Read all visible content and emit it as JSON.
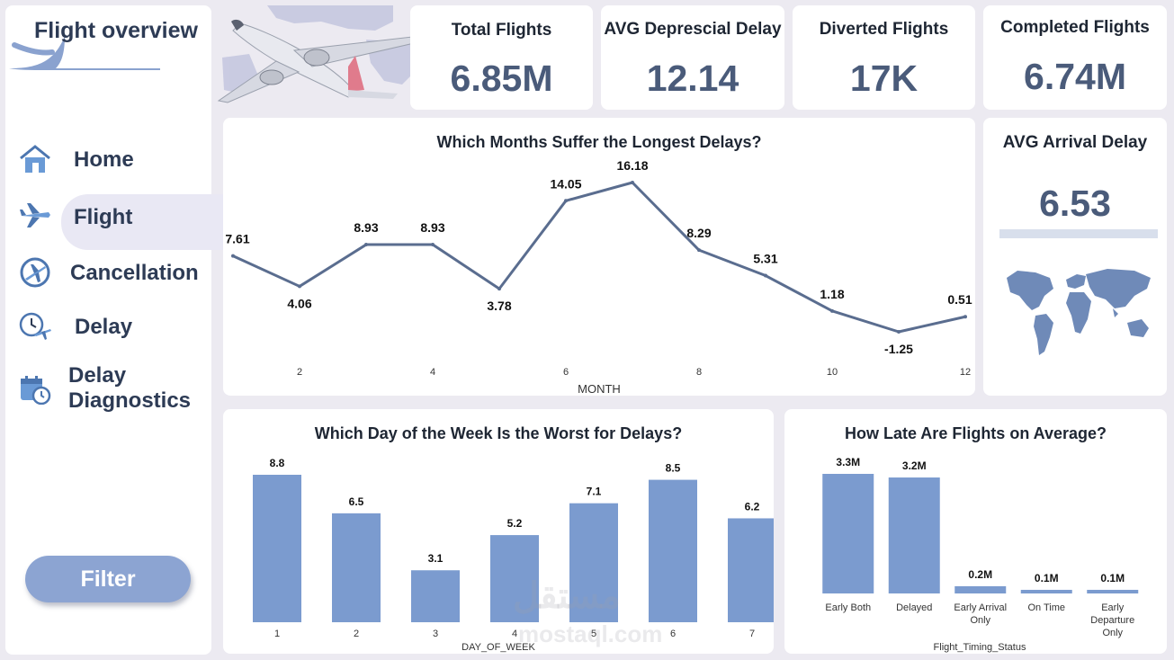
{
  "sidebar": {
    "title": "Flight overview",
    "items": [
      {
        "label": "Home",
        "icon": "home-icon"
      },
      {
        "label": "Flight",
        "icon": "airplane-icon"
      },
      {
        "label": "Cancellation",
        "icon": "airplane-circle-icon"
      },
      {
        "label": "Delay",
        "icon": "clock-airplane-icon"
      },
      {
        "label": "Delay Diagnostics",
        "icon": "calendar-clock-icon"
      }
    ],
    "active": "Flight",
    "filter_label": "Filter"
  },
  "kpis": {
    "total_flights": {
      "label": "Total Flights",
      "value": "6.85M"
    },
    "avg_departure_delay": {
      "label": "AVG Deprescial Delay",
      "value": "12.14"
    },
    "diverted_flights": {
      "label": "Diverted Flights",
      "value": "17K"
    },
    "completed_flights": {
      "label": "Completed Flights",
      "value": "6.74M"
    },
    "avg_arrival_delay": {
      "label": "AVG Arrival Delay",
      "value": "6.53"
    }
  },
  "colors": {
    "accent": "#7b9bcf",
    "line": "#5a6d8f",
    "kpi_value": "#4a5b7a"
  },
  "watermark": {
    "line1": "مستقل",
    "line2": "mostaql.com"
  },
  "chart_data": [
    {
      "type": "line",
      "title": "Which Months Suffer the Longest Delays?",
      "xlabel": "MONTH",
      "ylabel": "",
      "x": [
        1,
        2,
        3,
        4,
        5,
        6,
        7,
        8,
        9,
        10,
        11,
        12
      ],
      "values": [
        7.61,
        4.06,
        8.93,
        8.93,
        3.78,
        14.05,
        16.18,
        8.29,
        5.31,
        1.18,
        -1.25,
        0.51
      ],
      "labels": [
        "7.61",
        "4.06",
        "8.93",
        "8.93",
        "3.78",
        "14.05",
        "16.18",
        "8.29",
        "5.31",
        "1.18",
        "-1.25",
        "0.51"
      ],
      "xticks": [
        "2",
        "4",
        "6",
        "8",
        "10",
        "12"
      ]
    },
    {
      "type": "bar",
      "title": "Which Day of the Week Is the Worst for Delays?",
      "xlabel": "DAY_OF_WEEK",
      "categories": [
        "1",
        "2",
        "3",
        "4",
        "5",
        "6",
        "7"
      ],
      "values": [
        8.8,
        6.5,
        3.1,
        5.2,
        7.1,
        8.5,
        6.2
      ],
      "labels": [
        "8.8",
        "6.5",
        "3.1",
        "5.2",
        "7.1",
        "8.5",
        "6.2"
      ]
    },
    {
      "type": "bar",
      "title": "How Late Are Flights on Average?",
      "xlabel": "Flight_Timing_Status",
      "categories": [
        "Early Both",
        "Delayed",
        "Early Arrival Only",
        "On Time",
        "Early Departure Only"
      ],
      "values": [
        3.3,
        3.2,
        0.2,
        0.1,
        0.1
      ],
      "labels": [
        "3.3M",
        "3.2M",
        "0.2M",
        "0.1M",
        "0.1M"
      ]
    }
  ]
}
